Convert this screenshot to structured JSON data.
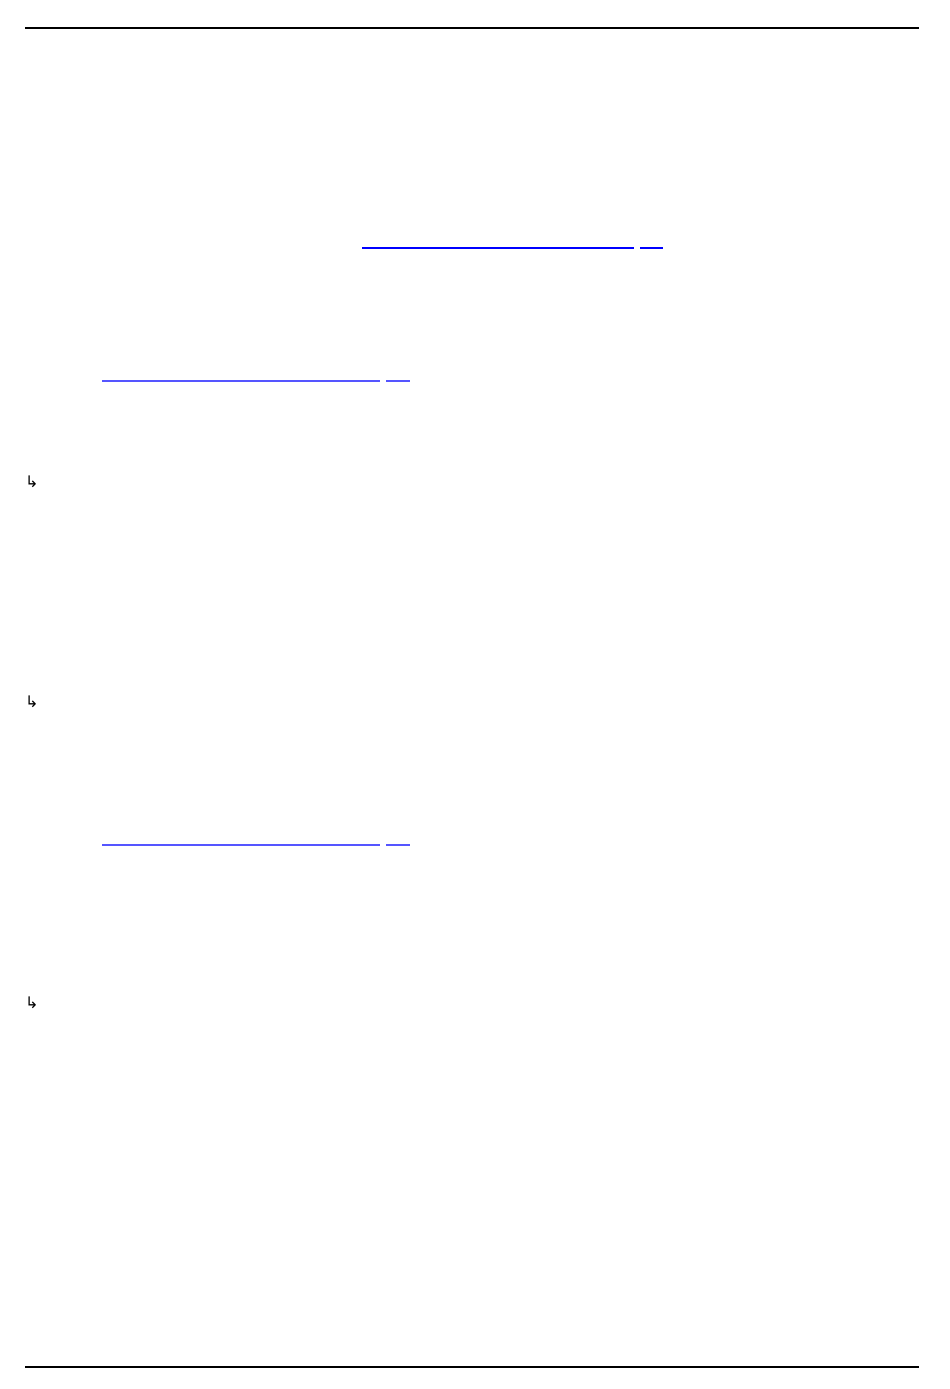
{
  "colors": {
    "rule": "#000000",
    "link": "#0000ff",
    "link_faded": "#5555ff"
  },
  "links": [
    {
      "label": "",
      "suffix": ""
    },
    {
      "label": "",
      "suffix": ""
    },
    {
      "label": "",
      "suffix": ""
    }
  ],
  "icons": {
    "return_arrow": "↳"
  }
}
